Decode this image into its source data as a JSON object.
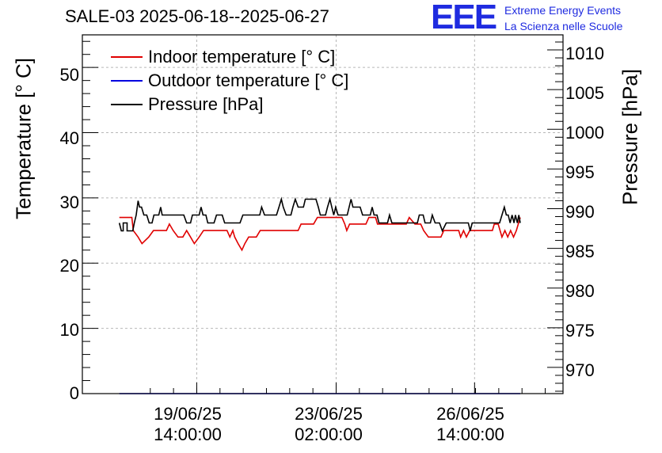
{
  "chart_data": {
    "type": "line",
    "title": "SALE-03 2025-06-18--2025-06-27",
    "logo": {
      "mark": "EEE",
      "line1": "Extreme Energy Events",
      "line2": "La Scienza nelle Scuole"
    },
    "ylabel": "Temperature [° C]",
    "y2label": "Pressure [hPa]",
    "ylim": [
      0,
      55
    ],
    "y2lim": [
      966.7,
      1011.9
    ],
    "xlim": [
      0,
      100
    ],
    "yticks": [
      "0",
      "10",
      "20",
      "30",
      "40",
      "50"
    ],
    "y2ticks": [
      "970",
      "975",
      "980",
      "985",
      "990",
      "995",
      "1000",
      "1005",
      "1010"
    ],
    "xticks": [
      {
        "x": 23.8,
        "line1": "19/06/25",
        "line2": "14:00:00"
      },
      {
        "x": 52.8,
        "line1": "23/06/25",
        "line2": "02:00:00"
      },
      {
        "x": 81.6,
        "line1": "26/06/25",
        "line2": "14:00:00"
      }
    ],
    "grid": true,
    "legend": "top-left",
    "series": [
      {
        "name": "Indoor temperature [° C]",
        "axis": "left",
        "color": "#e00000",
        "points": [
          [
            7.7,
            27
          ],
          [
            10.3,
            27
          ],
          [
            10.6,
            25
          ],
          [
            11.6,
            24
          ],
          [
            12.4,
            23
          ],
          [
            13.8,
            24
          ],
          [
            14.8,
            25
          ],
          [
            17.5,
            25
          ],
          [
            18.1,
            26
          ],
          [
            18.9,
            25
          ],
          [
            19.9,
            24
          ],
          [
            20.9,
            24
          ],
          [
            21.7,
            25
          ],
          [
            22.5,
            24
          ],
          [
            23.3,
            23
          ],
          [
            24.3,
            24
          ],
          [
            25.2,
            25
          ],
          [
            30.1,
            25
          ],
          [
            30.7,
            24
          ],
          [
            31.3,
            25
          ],
          [
            31.7,
            24
          ],
          [
            32.4,
            23
          ],
          [
            33.2,
            22
          ],
          [
            33.8,
            23
          ],
          [
            34.6,
            24
          ],
          [
            36.2,
            24
          ],
          [
            37,
            25
          ],
          [
            44.9,
            25
          ],
          [
            45.5,
            26
          ],
          [
            48.1,
            26
          ],
          [
            48.9,
            27
          ],
          [
            54,
            27
          ],
          [
            54.6,
            26
          ],
          [
            55,
            25
          ],
          [
            55.6,
            26
          ],
          [
            59,
            26
          ],
          [
            59.6,
            27
          ],
          [
            61,
            27
          ],
          [
            61.4,
            26
          ],
          [
            67.4,
            26
          ],
          [
            68,
            27
          ],
          [
            69.2,
            26
          ],
          [
            70.4,
            26
          ],
          [
            71,
            25
          ],
          [
            72,
            24
          ],
          [
            74.6,
            24
          ],
          [
            75.2,
            25
          ],
          [
            78.3,
            25
          ],
          [
            78.7,
            24
          ],
          [
            79.3,
            25
          ],
          [
            79.9,
            24
          ],
          [
            80.6,
            25
          ],
          [
            85.3,
            25
          ],
          [
            85.7,
            26
          ],
          [
            86.5,
            26
          ],
          [
            86.9,
            25
          ],
          [
            87.3,
            24
          ],
          [
            87.9,
            25
          ],
          [
            88.5,
            24
          ],
          [
            89.1,
            25
          ],
          [
            89.7,
            24
          ],
          [
            90.3,
            25
          ],
          [
            90.7,
            26
          ],
          [
            91.1,
            27
          ]
        ]
      },
      {
        "name": "Outdoor temperature [° C]",
        "axis": "left",
        "color": "#0000e0",
        "points": [
          [
            7.7,
            0
          ],
          [
            91.1,
            0
          ]
        ]
      },
      {
        "name": "Pressure [hPa]",
        "axis": "right",
        "color": "#000000",
        "points": [
          [
            7.7,
            988.2
          ],
          [
            8.1,
            987.2
          ],
          [
            8.5,
            987.2
          ],
          [
            8.5,
            988.2
          ],
          [
            9.3,
            988.2
          ],
          [
            9.3,
            987.2
          ],
          [
            10.5,
            987.2
          ],
          [
            10.8,
            988.2
          ],
          [
            11.2,
            989.2
          ],
          [
            11.6,
            991
          ],
          [
            11.9,
            990.2
          ],
          [
            12.3,
            990.2
          ],
          [
            12.8,
            989.2
          ],
          [
            13.4,
            989.2
          ],
          [
            13.9,
            988.2
          ],
          [
            14.5,
            988.2
          ],
          [
            14.9,
            989.2
          ],
          [
            15.3,
            989.2
          ],
          [
            15.9,
            989.2
          ],
          [
            16.3,
            990.2
          ],
          [
            16.6,
            989.2
          ],
          [
            21.1,
            989.2
          ],
          [
            21.7,
            988.2
          ],
          [
            22.5,
            988.2
          ],
          [
            22.9,
            989.2
          ],
          [
            24.3,
            989.2
          ],
          [
            24.7,
            990.2
          ],
          [
            25.1,
            989.2
          ],
          [
            25.7,
            989.2
          ],
          [
            26.1,
            988.2
          ],
          [
            27.4,
            988.2
          ],
          [
            27.9,
            989.2
          ],
          [
            29.1,
            989.2
          ],
          [
            29.6,
            988.2
          ],
          [
            32.8,
            988.2
          ],
          [
            33.4,
            989.2
          ],
          [
            36.9,
            989.2
          ],
          [
            37.3,
            990.2
          ],
          [
            37.9,
            989.2
          ],
          [
            40.4,
            989.2
          ],
          [
            40.9,
            990.2
          ],
          [
            41.4,
            991.2
          ],
          [
            41.8,
            990.2
          ],
          [
            42.4,
            989.2
          ],
          [
            43.4,
            989.2
          ],
          [
            43.8,
            990.2
          ],
          [
            44.3,
            991.2
          ],
          [
            44.9,
            990.2
          ],
          [
            46,
            990.2
          ],
          [
            46.4,
            991.2
          ],
          [
            48.6,
            991.2
          ],
          [
            49.1,
            990.2
          ],
          [
            49.5,
            989.2
          ],
          [
            50.6,
            989.2
          ],
          [
            51,
            990.2
          ],
          [
            51.5,
            991.2
          ],
          [
            51.9,
            990.2
          ],
          [
            52.3,
            989.2
          ],
          [
            52.7,
            990.2
          ],
          [
            53.2,
            989.2
          ],
          [
            55.1,
            989.2
          ],
          [
            55.5,
            990.2
          ],
          [
            55.9,
            991.2
          ],
          [
            56.3,
            990.2
          ],
          [
            57.8,
            990.2
          ],
          [
            58.3,
            989.2
          ],
          [
            59.9,
            989.2
          ],
          [
            60.3,
            990.2
          ],
          [
            60.7,
            989.2
          ],
          [
            61.3,
            989.2
          ],
          [
            61.7,
            988.2
          ],
          [
            63.5,
            988.2
          ],
          [
            63.9,
            989.2
          ],
          [
            64.4,
            988.2
          ],
          [
            69.7,
            988.2
          ],
          [
            70.1,
            989.2
          ],
          [
            70.9,
            989.2
          ],
          [
            71.3,
            988.2
          ],
          [
            72.4,
            988.2
          ],
          [
            72.8,
            989.2
          ],
          [
            73.4,
            988.2
          ],
          [
            74.3,
            988.2
          ],
          [
            74.9,
            987.2
          ],
          [
            75.7,
            988.2
          ],
          [
            80.3,
            988.2
          ],
          [
            80.7,
            987.2
          ],
          [
            81.1,
            988.2
          ],
          [
            86.8,
            988.2
          ],
          [
            87.3,
            989.2
          ],
          [
            87.8,
            990.2
          ],
          [
            88.2,
            989.2
          ],
          [
            88.6,
            989.2
          ],
          [
            89,
            988.2
          ],
          [
            89.4,
            989.2
          ],
          [
            89.8,
            988.2
          ],
          [
            90.1,
            989.2
          ],
          [
            90.5,
            988.2
          ],
          [
            90.8,
            989.2
          ],
          [
            91.1,
            988.2
          ]
        ]
      }
    ]
  }
}
